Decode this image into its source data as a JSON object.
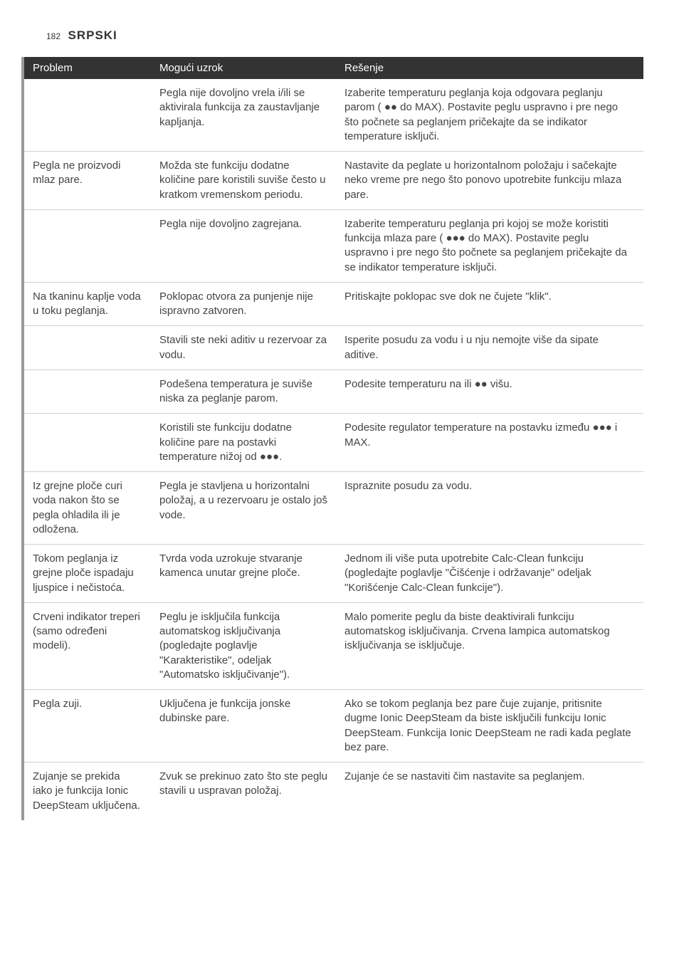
{
  "page": {
    "number": "182",
    "title": "SRPSKI"
  },
  "table": {
    "headers": {
      "problem": "Problem",
      "cause": "Mogući uzrok",
      "solution": "Rešenje"
    },
    "rows": [
      {
        "problem": "",
        "cause": "Pegla nije dovoljno vrela i/ili se aktivirala funkcija za zaustavljanje kapljanja.",
        "solution": "Izaberite temperaturu peglanja koja odgovara peglanju parom ( ●● do MAX). Postavite peglu uspravno i pre nego što počnete sa peglanjem pričekajte da se indikator temperature isključi."
      },
      {
        "problem": "Pegla ne proizvodi mlaz pare.",
        "cause": "Možda ste funkciju dodatne količine pare koristili suviše često u kratkom vremenskom periodu.",
        "solution": "Nastavite da peglate u horizontalnom položaju i sačekajte neko vreme pre nego što ponovo upotrebite funkciju mlaza pare."
      },
      {
        "problem": "",
        "cause": "Pegla nije dovoljno zagrejana.",
        "solution": "Izaberite temperaturu peglanja pri kojoj se može koristiti funkcija mlaza pare ( ●●● do MAX). Postavite peglu uspravno i pre nego što počnete sa peglanjem pričekajte da se indikator temperature isključi."
      },
      {
        "problem": "Na tkaninu kaplje voda u toku peglanja.",
        "cause": "Poklopac otvora za punjenje nije ispravno zatvoren.",
        "solution": "Pritiskajte poklopac sve dok ne čujete \"klik\"."
      },
      {
        "problem": "",
        "cause": "Stavili ste neki aditiv u rezervoar za vodu.",
        "solution": "Isperite posudu za vodu i u nju nemojte više da sipate aditive."
      },
      {
        "problem": "",
        "cause": "Podešena temperatura je suviše niska za peglanje parom.",
        "solution": "Podesite temperaturu na ili ●● višu."
      },
      {
        "problem": "",
        "cause": "Koristili ste funkciju dodatne količine pare na postavki temperature nižoj od ●●●.",
        "solution": "Podesite regulator temperature na postavku između ●●● i MAX."
      },
      {
        "problem": "Iz grejne ploče curi voda nakon što se pegla ohladila ili je odložena.",
        "cause": "Pegla je stavljena u horizontalni položaj, a u rezervoaru je ostalo još vode.",
        "solution": "Ispraznite posudu za vodu."
      },
      {
        "problem": "Tokom peglanja iz grejne ploče ispadaju ljuspice i nečistoća.",
        "cause": "Tvrda voda uzrokuje stvaranje kamenca unutar grejne ploče.",
        "solution": "Jednom ili više puta upotrebite Calc-Clean funkciju (pogledajte poglavlje \"Čišćenje i održavanje\" odeljak \"Korišćenje Calc-Clean funkcije\")."
      },
      {
        "problem": "Crveni indikator treperi (samo određeni modeli).",
        "cause": "Peglu je isključila funkcija automatskog isključivanja (pogledajte poglavlje \"Karakteristike\", odeljak \"Automatsko isključivanje\").",
        "solution": "Malo pomerite peglu da biste deaktivirali funkciju automatskog isključivanja. Crvena lampica automatskog isključivanja se isključuje."
      },
      {
        "problem": "Pegla zuji.",
        "cause": "Uključena je funkcija jonske dubinske pare.",
        "solution": "Ako se tokom peglanja bez pare čuje zujanje, pritisnite dugme Ionic DeepSteam da biste isključili funkciju Ionic DeepSteam. Funkcija Ionic DeepSteam ne radi kada peglate bez pare."
      },
      {
        "problem": "Zujanje se prekida iako je funkcija Ionic DeepSteam uključena.",
        "cause": "Zvuk se prekinuo zato što ste peglu stavili u uspravan položaj.",
        "solution": "Zujanje će se nastaviti čim nastavite sa peglanjem."
      }
    ]
  },
  "colors": {
    "header_bg": "#333333",
    "header_text": "#ffffff",
    "border_left": "#999999",
    "row_border": "#d0d0d0",
    "body_text": "#444444"
  }
}
